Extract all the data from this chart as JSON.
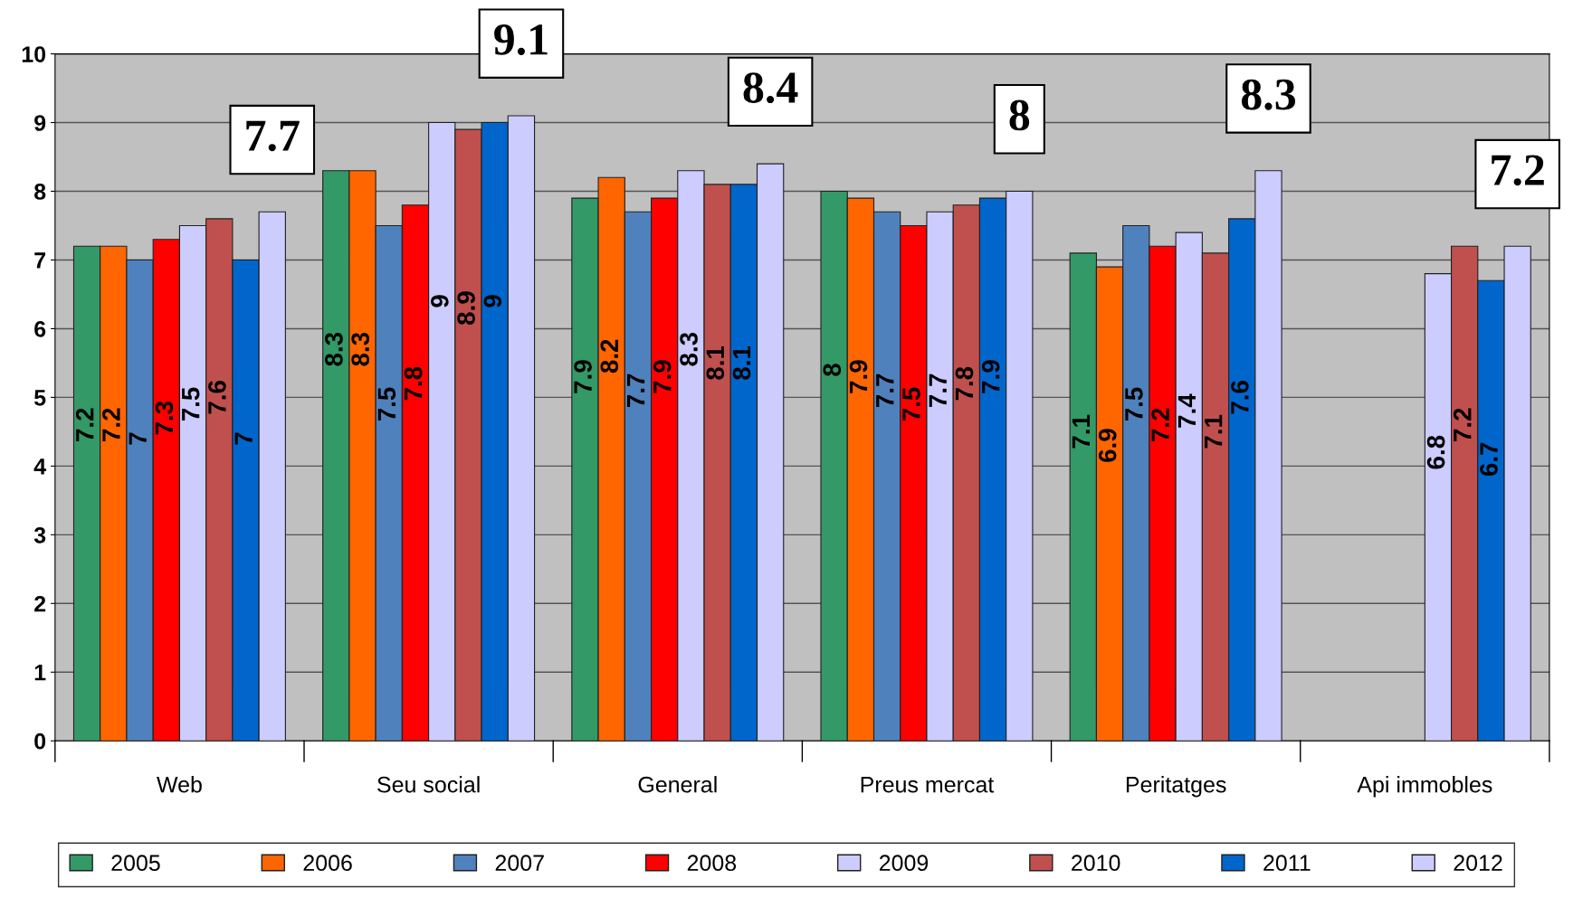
{
  "chart_data": {
    "type": "bar",
    "categories": [
      "Web",
      "Seu social",
      "General",
      "Preus mercat",
      "Peritatges",
      "Api immobles"
    ],
    "series": [
      {
        "name": "2005",
        "color": "#339966",
        "values": [
          7.2,
          8.3,
          7.9,
          8,
          7.1,
          null
        ]
      },
      {
        "name": "2006",
        "color": "#ff6600",
        "values": [
          7.2,
          8.3,
          8.2,
          7.9,
          6.9,
          null
        ]
      },
      {
        "name": "2007",
        "color": "#4f81bd",
        "values": [
          7,
          7.5,
          7.7,
          7.7,
          7.5,
          null
        ]
      },
      {
        "name": "2008",
        "color": "#ff0000",
        "values": [
          7.3,
          7.8,
          7.9,
          7.5,
          7.2,
          null
        ]
      },
      {
        "name": "2009",
        "color": "#ccccff",
        "values": [
          7.5,
          9,
          8.3,
          7.7,
          7.4,
          6.8
        ]
      },
      {
        "name": "2010",
        "color": "#c0504d",
        "values": [
          7.6,
          8.9,
          8.1,
          7.8,
          7.1,
          7.2
        ]
      },
      {
        "name": "2011",
        "color": "#0066cc",
        "values": [
          7,
          9,
          8.1,
          7.9,
          7.6,
          6.7
        ]
      },
      {
        "name": "2012",
        "color": "#ccccff",
        "values": [
          7.7,
          9.1,
          8.4,
          8,
          8.3,
          7.2
        ]
      }
    ],
    "ylim": [
      0,
      10
    ],
    "yticks": [
      0,
      1,
      2,
      3,
      4,
      5,
      6,
      7,
      8,
      9,
      10
    ],
    "grid": "y",
    "legend": "bottom",
    "data_labels": true
  }
}
